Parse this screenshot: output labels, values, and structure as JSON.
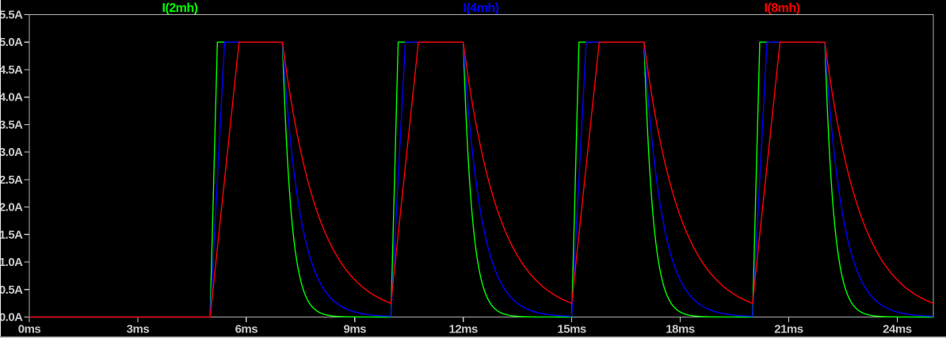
{
  "colors": {
    "background": "#000000",
    "plot_border": "#b2b2b2",
    "tick_text": "#c8c8c8",
    "window_edge": "#e8e8e8"
  },
  "legend": {
    "items": [
      "I(2mh)",
      "I(4mh)",
      "I(8mh)"
    ]
  },
  "chart_data": {
    "type": "line",
    "title": "",
    "legend_position": "top",
    "grid": false,
    "x_axis": {
      "unit": "ms",
      "min": 0,
      "max": 25,
      "tick_interval": 3,
      "tick_values": [
        0,
        3,
        6,
        9,
        12,
        15,
        18,
        21,
        24
      ],
      "tick_labels": [
        "0ms",
        "3ms",
        "6ms",
        "9ms",
        "12ms",
        "15ms",
        "18ms",
        "21ms",
        "24ms"
      ]
    },
    "y_axis": {
      "unit": "A",
      "min": 0,
      "max": 5.5,
      "tick_interval": 0.5,
      "tick_values": [
        0,
        0.5,
        1,
        1.5,
        2,
        2.5,
        3,
        3.5,
        4,
        4.5,
        5,
        5.5
      ],
      "tick_labels": [
        "0.0A",
        "0.5A",
        "1.0A",
        "1.5A",
        "2.0A",
        "2.5A",
        "3.0A",
        "3.5A",
        "4.0A",
        "4.5A",
        "5.0A",
        "5.5A"
      ]
    },
    "pulse": {
      "on_times_ms": [
        5,
        10,
        15,
        20
      ],
      "off_times_ms": [
        7,
        12,
        17,
        22
      ],
      "period_ms": 5,
      "on_duration_ms": 2,
      "first_value_A": 0
    },
    "series": [
      {
        "name": "I(2mh)",
        "color": "#00ff00",
        "amplitude_A": 5.0,
        "rise_time_ms": 0.2,
        "decay_tau_ms": 0.25
      },
      {
        "name": "I(4mh)",
        "color": "#0000ff",
        "amplitude_A": 5.0,
        "rise_time_ms": 0.4,
        "decay_tau_ms": 0.5
      },
      {
        "name": "I(8mh)",
        "color": "#ff0000",
        "amplitude_A": 5.0,
        "rise_time_ms": 0.8,
        "decay_tau_ms": 1.0
      }
    ],
    "waveform_description": "Inductor currents: zero until 5ms, then periodic trapezoid pulses rising linearly to 5A (rise time proportional to L), flat at 5A until pulse end, then exponential decay with tau proportional to L; red (8mH) decays to ~0.25A residual at each next pulse start."
  }
}
